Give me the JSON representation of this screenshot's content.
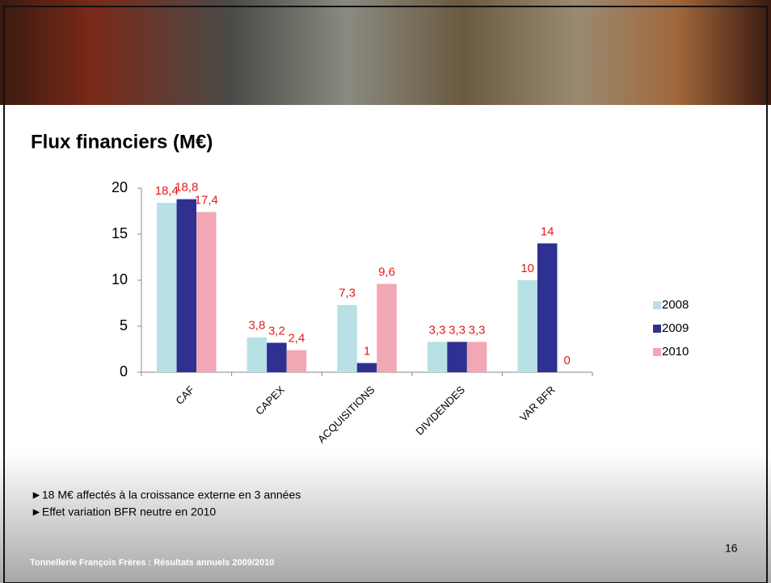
{
  "title": "Flux financiers (M€)",
  "bullets": [
    "►18  M€ affectés à la croissance externe en 3 années",
    "►Effet variation BFR neutre en 2010"
  ],
  "footer": "Tonnellerie François Frères : Résultats annuels 2009/2010",
  "page_number": "16",
  "chart_data": {
    "type": "bar",
    "categories": [
      "CAF",
      "CAPEX",
      "ACQUISITIONS",
      "DIVIDENDES",
      "VAR BFR"
    ],
    "series": [
      {
        "name": "2008",
        "color": "#b7e1e4",
        "values": [
          18.4,
          3.8,
          7.3,
          3.3,
          10
        ],
        "value_labels": [
          "18,4",
          "3,8",
          "7,3",
          "3,3",
          "10"
        ]
      },
      {
        "name": "2009",
        "color": "#2e3192",
        "values": [
          18.8,
          3.2,
          1,
          3.3,
          14
        ],
        "value_labels": [
          "18,8",
          "3,2",
          "1",
          "3,3",
          "14"
        ]
      },
      {
        "name": "2010",
        "color": "#f2a7b4",
        "values": [
          17.4,
          2.4,
          9.6,
          3.3,
          0
        ],
        "value_labels": [
          "17,4",
          "2,4",
          "9,6",
          "3,3",
          "0"
        ]
      }
    ],
    "ylim": [
      0,
      20
    ],
    "yticks": [
      0,
      5,
      10,
      15,
      20
    ],
    "grid": false,
    "legend": "right",
    "label_color": "#e31b1b"
  }
}
